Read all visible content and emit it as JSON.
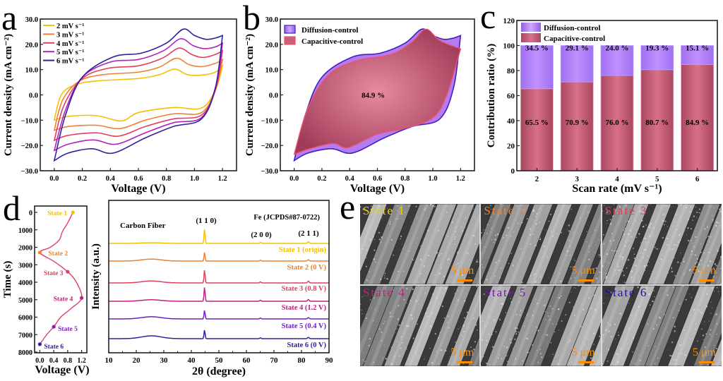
{
  "panel_labels": {
    "a": "a",
    "b": "b",
    "c": "c",
    "d": "d",
    "e": "e"
  },
  "colors": {
    "s2": "#f5c000",
    "s3": "#f08030",
    "s4": "#e04060",
    "s5": "#b020c0",
    "s6": "#3020a0",
    "diffusion_fill": "#b47cf0",
    "capacitive_fill": "#b8506a",
    "diffusion_edge": "#4020c0",
    "capacitive_edge": "#f05070",
    "scale_orange": "#ff8c00"
  },
  "chart_data": [
    {
      "id": "a",
      "type": "line",
      "title": "",
      "xlabel": "Voltage (V)",
      "ylabel": "Current density (mA cm⁻²)",
      "xlim": [
        -0.1,
        1.3
      ],
      "ylim": [
        -30,
        30
      ],
      "xticks": [
        "0.0",
        "0.2",
        "0.4",
        "0.6",
        "0.8",
        "1.0",
        "1.2"
      ],
      "yticks": [
        "30.0",
        "20.0",
        "10.0",
        "0.0",
        "−10.0",
        "−20.0",
        "−30.0"
      ],
      "legend": "top-left",
      "series": [
        {
          "name": "2 mV s⁻¹",
          "color": "#f5c000",
          "anodic": [
            [
              0.0,
              -10
            ],
            [
              0.05,
              0
            ],
            [
              0.15,
              4
            ],
            [
              0.3,
              5.5
            ],
            [
              0.6,
              6.5
            ],
            [
              0.75,
              8
            ],
            [
              0.86,
              10.2
            ],
            [
              0.95,
              8
            ],
            [
              1.05,
              7.8
            ],
            [
              1.15,
              9
            ],
            [
              1.2,
              11.5
            ]
          ],
          "cathodic": [
            [
              1.2,
              11.5
            ],
            [
              1.15,
              2
            ],
            [
              1.05,
              -5.2
            ],
            [
              0.85,
              -5
            ],
            [
              0.6,
              -7
            ],
            [
              0.48,
              -10.3
            ],
            [
              0.3,
              -8.2
            ],
            [
              0.1,
              -8.5
            ],
            [
              0.0,
              -10
            ]
          ]
        },
        {
          "name": "3 mV s⁻¹",
          "color": "#f08030",
          "anodic": [
            [
              0.0,
              -14
            ],
            [
              0.06,
              -2
            ],
            [
              0.18,
              5.5
            ],
            [
              0.35,
              8
            ],
            [
              0.6,
              9
            ],
            [
              0.75,
              11
            ],
            [
              0.87,
              14.5
            ],
            [
              0.96,
              12
            ],
            [
              1.05,
              11.2
            ],
            [
              1.15,
              12.5
            ],
            [
              1.2,
              14
            ]
          ],
          "cathodic": [
            [
              1.2,
              14
            ],
            [
              1.15,
              2
            ],
            [
              1.05,
              -7
            ],
            [
              0.85,
              -7.5
            ],
            [
              0.65,
              -10
            ],
            [
              0.47,
              -13.3
            ],
            [
              0.3,
              -12
            ],
            [
              0.1,
              -12.5
            ],
            [
              0.0,
              -14
            ]
          ]
        },
        {
          "name": "4 mV s⁻¹",
          "color": "#e04060",
          "anodic": [
            [
              0.0,
              -18
            ],
            [
              0.07,
              -4
            ],
            [
              0.2,
              6.5
            ],
            [
              0.38,
              10.5
            ],
            [
              0.6,
              11.5
            ],
            [
              0.77,
              14.5
            ],
            [
              0.89,
              18.5
            ],
            [
              0.98,
              16
            ],
            [
              1.06,
              14.8
            ],
            [
              1.15,
              16
            ],
            [
              1.2,
              17.5
            ]
          ],
          "cathodic": [
            [
              1.2,
              17.5
            ],
            [
              1.15,
              2
            ],
            [
              1.05,
              -8
            ],
            [
              0.85,
              -9.5
            ],
            [
              0.65,
              -12.5
            ],
            [
              0.46,
              -16.3
            ],
            [
              0.3,
              -15
            ],
            [
              0.1,
              -16
            ],
            [
              0.0,
              -18
            ]
          ]
        },
        {
          "name": "5 mV s⁻¹",
          "color": "#b020c0",
          "anodic": [
            [
              0.0,
              -22
            ],
            [
              0.08,
              -6
            ],
            [
              0.2,
              7
            ],
            [
              0.4,
              13
            ],
            [
              0.6,
              14
            ],
            [
              0.78,
              17.5
            ],
            [
              0.9,
              22.2
            ],
            [
              0.99,
              19.5
            ],
            [
              1.07,
              18.3
            ],
            [
              1.15,
              19
            ],
            [
              1.2,
              20.5
            ]
          ],
          "cathodic": [
            [
              1.2,
              20.5
            ],
            [
              1.15,
              3
            ],
            [
              1.05,
              -9
            ],
            [
              0.85,
              -11
            ],
            [
              0.65,
              -15
            ],
            [
              0.44,
              -19.5
            ],
            [
              0.28,
              -17.8
            ],
            [
              0.1,
              -19.5
            ],
            [
              0.0,
              -22
            ]
          ]
        },
        {
          "name": "6 mV s⁻¹",
          "color": "#3020a0",
          "anodic": [
            [
              0.0,
              -26
            ],
            [
              0.08,
              -8
            ],
            [
              0.2,
              7
            ],
            [
              0.42,
              15
            ],
            [
              0.62,
              16.5
            ],
            [
              0.8,
              20.5
            ],
            [
              0.92,
              26
            ],
            [
              1.0,
              23.5
            ],
            [
              1.08,
              22
            ],
            [
              1.15,
              22.5
            ],
            [
              1.2,
              23.5
            ]
          ],
          "cathodic": [
            [
              1.2,
              23.5
            ],
            [
              1.15,
              3
            ],
            [
              1.05,
              -9.5
            ],
            [
              0.85,
              -12.5
            ],
            [
              0.65,
              -17
            ],
            [
              0.42,
              -23
            ],
            [
              0.27,
              -21.3
            ],
            [
              0.1,
              -23
            ],
            [
              0.0,
              -26
            ]
          ]
        }
      ]
    },
    {
      "id": "b",
      "type": "area",
      "xlabel": "Voltage (V)",
      "ylabel": "Current density (mA cm⁻²)",
      "xlim": [
        -0.1,
        1.3
      ],
      "ylim": [
        -30,
        30
      ],
      "xticks": [
        "0.0",
        "0.2",
        "0.4",
        "0.6",
        "0.8",
        "1.0",
        "1.2"
      ],
      "yticks": [
        "30.0",
        "20.0",
        "10.0",
        "0.0",
        "−10.0",
        "−20.0",
        "−30.0"
      ],
      "legend": "top-left",
      "annotation": "84.9 %",
      "series": [
        {
          "name": "Diffusion-control",
          "color": "#b47cf0",
          "edge": "#4020c0",
          "anodic": [
            [
              0.0,
              -26
            ],
            [
              0.08,
              -8
            ],
            [
              0.2,
              7
            ],
            [
              0.42,
              15
            ],
            [
              0.62,
              16.5
            ],
            [
              0.8,
              20.5
            ],
            [
              0.92,
              26
            ],
            [
              1.0,
              23.5
            ],
            [
              1.08,
              22
            ],
            [
              1.15,
              22.5
            ],
            [
              1.2,
              23.5
            ]
          ],
          "cathodic": [
            [
              1.2,
              23.5
            ],
            [
              1.15,
              3
            ],
            [
              1.05,
              -9.5
            ],
            [
              0.85,
              -12.5
            ],
            [
              0.65,
              -17
            ],
            [
              0.42,
              -23
            ],
            [
              0.27,
              -21.3
            ],
            [
              0.1,
              -23
            ],
            [
              0.0,
              -26
            ]
          ]
        },
        {
          "name": "Capacitive-control",
          "color": "#b8506a",
          "edge": "#f05070",
          "anodic": [
            [
              0.0,
              -23.5
            ],
            [
              0.1,
              -5
            ],
            [
              0.25,
              8
            ],
            [
              0.45,
              13.5
            ],
            [
              0.7,
              16
            ],
            [
              0.85,
              21
            ],
            [
              0.95,
              26
            ],
            [
              1.05,
              21.5
            ],
            [
              1.2,
              18.2
            ]
          ],
          "cathodic": [
            [
              1.2,
              18.2
            ],
            [
              1.1,
              0
            ],
            [
              1.0,
              -9
            ],
            [
              0.8,
              -13.2
            ],
            [
              0.6,
              -15.5
            ],
            [
              0.39,
              -20.8
            ],
            [
              0.28,
              -19.2
            ],
            [
              0.1,
              -21.5
            ],
            [
              0.0,
              -23.5
            ]
          ]
        }
      ]
    },
    {
      "id": "c",
      "type": "bar",
      "stacked": true,
      "xlabel": "Scan rate (mV s⁻¹)",
      "ylabel": "Contribution ratio (%)",
      "ylim": [
        0,
        120
      ],
      "yticks": [
        "0",
        "20",
        "40",
        "60",
        "80",
        "100",
        "120"
      ],
      "categories": [
        "2",
        "3",
        "4",
        "5",
        "6"
      ],
      "legend": "top-left",
      "series": [
        {
          "name": "Capacitive-control",
          "color": "#b8506a",
          "values": [
            65.5,
            70.9,
            76.0,
            80.7,
            84.9
          ],
          "labels": [
            "65.5 %",
            "70.9 %",
            "76.0 %",
            "80.7 %",
            "84.9 %"
          ]
        },
        {
          "name": "Diffusion-control",
          "color": "#b47cf0",
          "values": [
            34.5,
            29.1,
            24.0,
            19.3,
            15.1
          ],
          "labels": [
            "34.5 %",
            "29.1 %",
            "24.0 %",
            "19.3 %",
            "15.1 %"
          ]
        }
      ]
    },
    {
      "id": "d-left",
      "type": "line",
      "xlabel": "Voltage (V)",
      "ylabel": "Time (s)",
      "xlim": [
        -0.15,
        1.35
      ],
      "ylim": [
        0,
        8000
      ],
      "y_inverted": true,
      "xticks": [
        "0.0",
        "0.4",
        "0.8",
        "1.2"
      ],
      "yticks": [
        "0",
        "1000",
        "2000",
        "3000",
        "4000",
        "5000",
        "6000",
        "7000",
        "8000"
      ],
      "curve": [
        [
          0.95,
          0
        ],
        [
          0.8,
          600
        ],
        [
          0.65,
          1100
        ],
        [
          0.55,
          1600
        ],
        [
          0.3,
          2000
        ],
        [
          0.0,
          2300
        ],
        [
          0.4,
          2800
        ],
        [
          0.8,
          3400
        ],
        [
          1.05,
          4000
        ],
        [
          1.2,
          4900
        ],
        [
          0.9,
          5500
        ],
        [
          0.6,
          6000
        ],
        [
          0.4,
          6550
        ],
        [
          0.2,
          7000
        ],
        [
          0.0,
          7550
        ]
      ],
      "states": [
        {
          "label": "State 1",
          "x": 0.95,
          "t": 0,
          "color": "#f5c000"
        },
        {
          "label": "State 2",
          "x": 0.0,
          "t": 2300,
          "color": "#f08030"
        },
        {
          "label": "State 3",
          "x": 0.8,
          "t": 3400,
          "color": "#e04060"
        },
        {
          "label": "State 4",
          "x": 1.2,
          "t": 4900,
          "color": "#c02080"
        },
        {
          "label": "State 5",
          "x": 0.4,
          "t": 6550,
          "color": "#8020c0"
        },
        {
          "label": "State 6",
          "x": 0.0,
          "t": 7550,
          "color": "#3020a0"
        }
      ]
    },
    {
      "id": "d-right",
      "type": "line",
      "xlabel": "2θ (degree)",
      "ylabel": "Intensity (a.u.)",
      "xlim": [
        10,
        90
      ],
      "xticks": [
        "10",
        "20",
        "30",
        "40",
        "50",
        "60",
        "70",
        "80",
        "90"
      ],
      "annotations": [
        "Carbon Fiber",
        "(1 1 0)",
        "(2 0 0)",
        "(2 1 1)",
        "Fe (JCPDS#87-0722)"
      ],
      "peaks": [
        {
          "pos": 44.7,
          "hkl": "(1 1 0)"
        },
        {
          "pos": 65.0,
          "hkl": "(2 0 0)"
        },
        {
          "pos": 82.3,
          "hkl": "(2 1 1)"
        }
      ],
      "series": [
        {
          "name": "State 1 (origin)",
          "color": "#f5c000",
          "hump": 0.3,
          "peak110": 6.5,
          "peak200": 0.5,
          "peak211": 0.8
        },
        {
          "name": "State 2 (0 V)",
          "color": "#f08030",
          "hump": 0.9,
          "peak110": 4.0,
          "peak200": 0.4,
          "peak211": 0.6
        },
        {
          "name": "State 3 (0.8 V)",
          "color": "#e04060",
          "hump": 0.9,
          "peak110": 6.0,
          "peak200": 0.5,
          "peak211": 0.8
        },
        {
          "name": "State 4 (1.2 V)",
          "color": "#c02080",
          "hump": 0.7,
          "peak110": 6.5,
          "peak200": 0.5,
          "peak211": 0.8
        },
        {
          "name": "State 5 (0.4 V)",
          "color": "#7020c0",
          "hump": 1.0,
          "peak110": 4.0,
          "peak200": 0.4,
          "peak211": 0.6
        },
        {
          "name": "State 6 (0 V)",
          "color": "#3020a0",
          "hump": 1.3,
          "peak110": 4.0,
          "peak200": 0.4,
          "peak211": 0.6
        }
      ]
    }
  ],
  "sem": {
    "scale": "5 μm",
    "images": [
      {
        "label": "State 1",
        "color": "#f0d000"
      },
      {
        "label": "State 2",
        "color": "#f08030"
      },
      {
        "label": "State 3",
        "color": "#e04060"
      },
      {
        "label": "State 4",
        "color": "#c02080"
      },
      {
        "label": "State 5",
        "color": "#8010c0"
      },
      {
        "label": "State 6",
        "color": "#2010a0"
      }
    ]
  }
}
